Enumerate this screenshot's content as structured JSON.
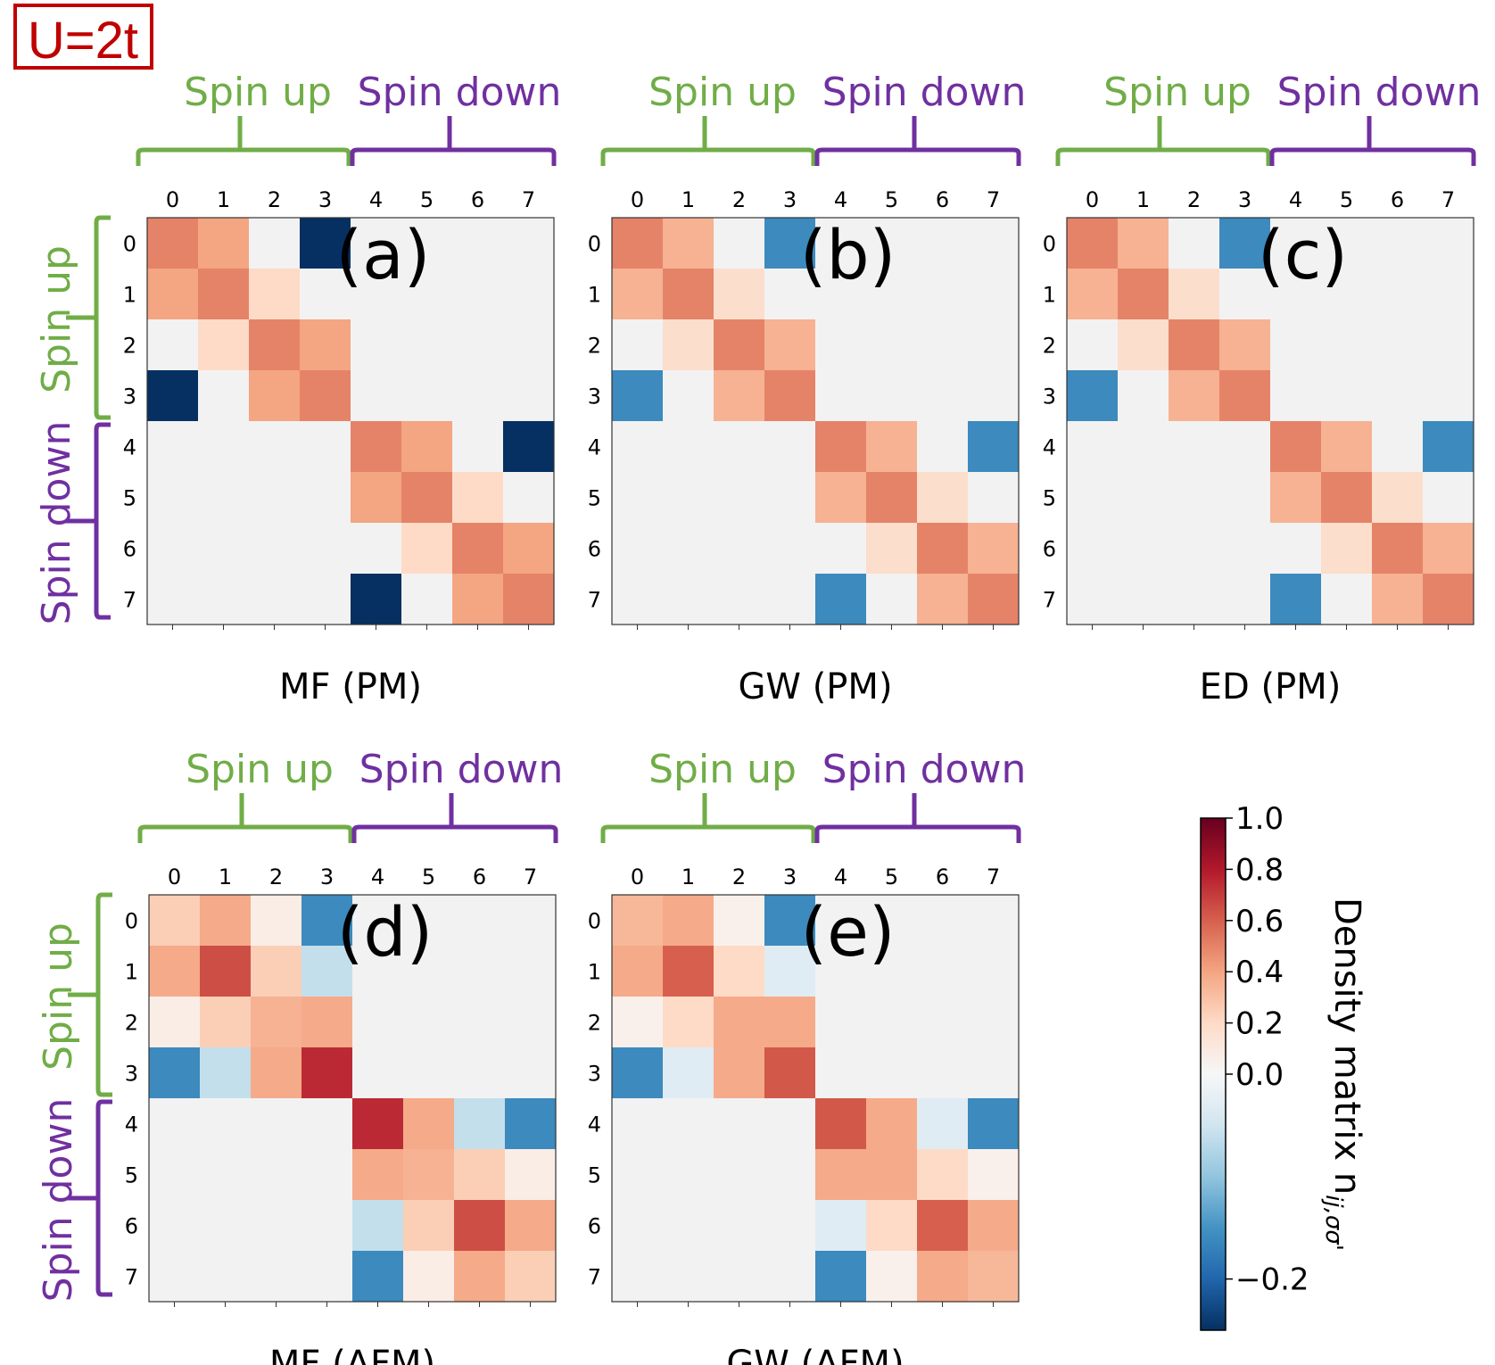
{
  "label_box": "U=2t",
  "spin_up_label": "Spin up",
  "spin_down_label": "Spin down",
  "colors": {
    "spin_up": "#70ad47",
    "spin_down": "#7030a0",
    "label_box": "#c00000",
    "grid_fill": "#f2f2f2"
  },
  "colorbar": {
    "label": "Density matrix n",
    "label_subscript": "ij,σσ'",
    "min": -0.25,
    "max": 1.0,
    "ticks": [
      "1.0",
      "0.8",
      "0.6",
      "0.4",
      "0.2",
      "0.0",
      "−0.2"
    ],
    "tick_values": [
      1.0,
      0.8,
      0.6,
      0.4,
      0.2,
      0.0,
      -0.2
    ],
    "colormap": "RdBu_r"
  },
  "chart_data": [
    {
      "type": "heatmap",
      "panel_label": "(a)",
      "title": "MF (PM)",
      "x_ticks": [
        "0",
        "1",
        "2",
        "3",
        "4",
        "5",
        "6",
        "7"
      ],
      "y_ticks": [
        "0",
        "1",
        "2",
        "3",
        "4",
        "5",
        "6",
        "7"
      ],
      "matrix": [
        [
          0.5,
          0.4,
          0.0,
          -0.25,
          0,
          0,
          0,
          0
        ],
        [
          0.4,
          0.5,
          0.2,
          0.0,
          0,
          0,
          0,
          0
        ],
        [
          0.0,
          0.2,
          0.5,
          0.4,
          0,
          0,
          0,
          0
        ],
        [
          -0.25,
          0.0,
          0.4,
          0.5,
          0,
          0,
          0,
          0
        ],
        [
          0,
          0,
          0,
          0,
          0.5,
          0.4,
          0.0,
          -0.25
        ],
        [
          0,
          0,
          0,
          0,
          0.4,
          0.5,
          0.2,
          0.0
        ],
        [
          0,
          0,
          0,
          0,
          0.0,
          0.2,
          0.5,
          0.4
        ],
        [
          0,
          0,
          0,
          0,
          -0.25,
          0.0,
          0.4,
          0.5
        ]
      ]
    },
    {
      "type": "heatmap",
      "panel_label": "(b)",
      "title": "GW (PM)",
      "x_ticks": [
        "0",
        "1",
        "2",
        "3",
        "4",
        "5",
        "6",
        "7"
      ],
      "y_ticks": [
        "0",
        "1",
        "2",
        "3",
        "4",
        "5",
        "6",
        "7"
      ],
      "matrix": [
        [
          0.5,
          0.35,
          0.0,
          -0.16,
          0,
          0,
          0,
          0
        ],
        [
          0.35,
          0.5,
          0.18,
          0.0,
          0,
          0,
          0,
          0
        ],
        [
          0.0,
          0.18,
          0.5,
          0.35,
          0,
          0,
          0,
          0
        ],
        [
          -0.16,
          0.0,
          0.35,
          0.5,
          0,
          0,
          0,
          0
        ],
        [
          0,
          0,
          0,
          0,
          0.5,
          0.35,
          0.0,
          -0.16
        ],
        [
          0,
          0,
          0,
          0,
          0.35,
          0.5,
          0.18,
          0.0
        ],
        [
          0,
          0,
          0,
          0,
          0.0,
          0.18,
          0.5,
          0.35
        ],
        [
          0,
          0,
          0,
          0,
          -0.16,
          0.0,
          0.35,
          0.5
        ]
      ]
    },
    {
      "type": "heatmap",
      "panel_label": "(c)",
      "title": "ED (PM)",
      "x_ticks": [
        "0",
        "1",
        "2",
        "3",
        "4",
        "5",
        "6",
        "7"
      ],
      "y_ticks": [
        "0",
        "1",
        "2",
        "3",
        "4",
        "5",
        "6",
        "7"
      ],
      "matrix": [
        [
          0.5,
          0.35,
          0.0,
          -0.16,
          0,
          0,
          0,
          0
        ],
        [
          0.35,
          0.5,
          0.18,
          0.0,
          0,
          0,
          0,
          0
        ],
        [
          0.0,
          0.18,
          0.5,
          0.35,
          0,
          0,
          0,
          0
        ],
        [
          -0.16,
          0.0,
          0.35,
          0.5,
          0,
          0,
          0,
          0
        ],
        [
          0,
          0,
          0,
          0,
          0.5,
          0.35,
          0.0,
          -0.16
        ],
        [
          0,
          0,
          0,
          0,
          0.35,
          0.5,
          0.18,
          0.0
        ],
        [
          0,
          0,
          0,
          0,
          0.0,
          0.18,
          0.5,
          0.35
        ],
        [
          0,
          0,
          0,
          0,
          -0.16,
          0.0,
          0.35,
          0.5
        ]
      ]
    },
    {
      "type": "heatmap",
      "panel_label": "(d)",
      "title": "MF (AFM)",
      "x_ticks": [
        "0",
        "1",
        "2",
        "3",
        "4",
        "5",
        "6",
        "7"
      ],
      "y_ticks": [
        "0",
        "1",
        "2",
        "3",
        "4",
        "5",
        "6",
        "7"
      ],
      "matrix": [
        [
          0.25,
          0.38,
          0.07,
          -0.16,
          0,
          0,
          0,
          0
        ],
        [
          0.38,
          0.65,
          0.25,
          -0.06,
          0,
          0,
          0,
          0
        ],
        [
          0.07,
          0.25,
          0.35,
          0.38,
          0,
          0,
          0,
          0
        ],
        [
          -0.16,
          -0.06,
          0.38,
          0.75,
          0,
          0,
          0,
          0
        ],
        [
          0,
          0,
          0,
          0,
          0.75,
          0.38,
          -0.06,
          -0.16
        ],
        [
          0,
          0,
          0,
          0,
          0.38,
          0.35,
          0.25,
          0.07
        ],
        [
          0,
          0,
          0,
          0,
          -0.06,
          0.25,
          0.65,
          0.38
        ],
        [
          0,
          0,
          0,
          0,
          -0.16,
          0.07,
          0.38,
          0.25
        ]
      ]
    },
    {
      "type": "heatmap",
      "panel_label": "(e)",
      "title": "GW (AFM)",
      "x_ticks": [
        "0",
        "1",
        "2",
        "3",
        "4",
        "5",
        "6",
        "7"
      ],
      "y_ticks": [
        "0",
        "1",
        "2",
        "3",
        "4",
        "5",
        "6",
        "7"
      ],
      "matrix": [
        [
          0.33,
          0.38,
          0.05,
          -0.16,
          0,
          0,
          0,
          0
        ],
        [
          0.38,
          0.6,
          0.2,
          -0.03,
          0,
          0,
          0,
          0
        ],
        [
          0.05,
          0.2,
          0.38,
          0.38,
          0,
          0,
          0,
          0
        ],
        [
          -0.16,
          -0.03,
          0.38,
          0.62,
          0,
          0,
          0,
          0
        ],
        [
          0,
          0,
          0,
          0,
          0.62,
          0.38,
          -0.03,
          -0.16
        ],
        [
          0,
          0,
          0,
          0,
          0.38,
          0.38,
          0.2,
          0.05
        ],
        [
          0,
          0,
          0,
          0,
          -0.03,
          0.2,
          0.6,
          0.38
        ],
        [
          0,
          0,
          0,
          0,
          -0.16,
          0.05,
          0.38,
          0.33
        ]
      ]
    }
  ]
}
